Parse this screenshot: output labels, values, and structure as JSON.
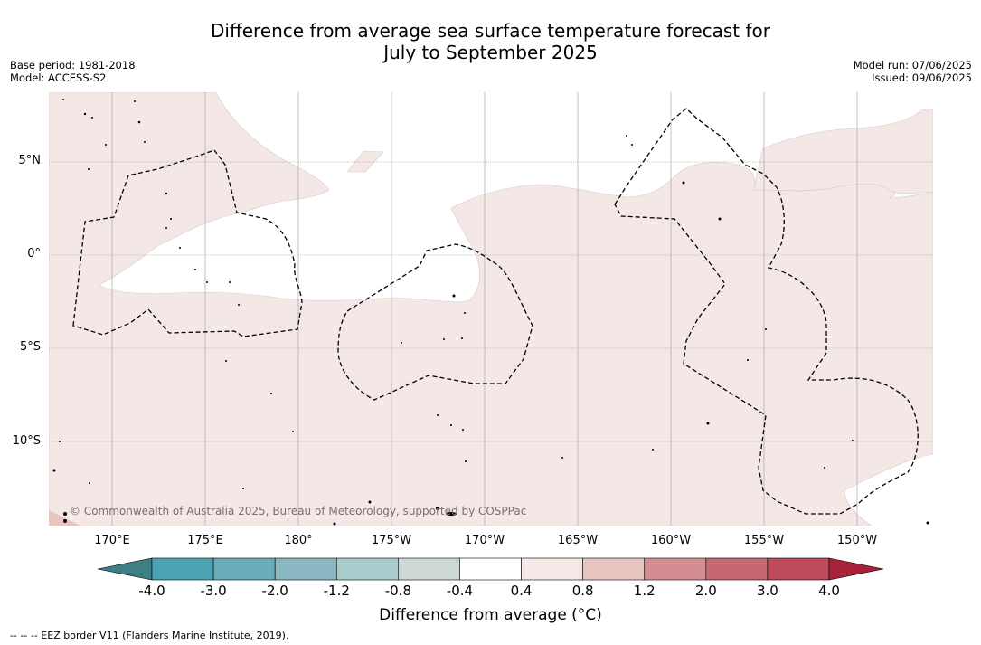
{
  "title_line1": "Difference from average sea surface temperature forecast for",
  "title_line2": "July to September 2025",
  "base_period": "Base period: 1981-2018",
  "model": "Model: ACCESS-S2",
  "model_run": "Model run: 07/06/2025",
  "issued": "Issued: 09/06/2025",
  "lat_labels": [
    "5°N",
    "0°",
    "5°S",
    "10°S"
  ],
  "lon_labels": [
    "170°E",
    "175°E",
    "180°",
    "175°W",
    "170°W",
    "165°W",
    "160°W",
    "155°W",
    "150°W"
  ],
  "copyright": "© Commonwealth of Australia 2025, Bureau of Meteorology, supported by COSPPac",
  "colorbar": {
    "ticks": [
      "-4.0",
      "-3.0",
      "-2.0",
      "-1.2",
      "-0.8",
      "-0.4",
      "0.4",
      "0.8",
      "1.2",
      "2.0",
      "3.0",
      "4.0"
    ],
    "colors": [
      "#3d7f85",
      "#4aa3b2",
      "#6aabba",
      "#8ab7c1",
      "#aacbcc",
      "#ccd7d6",
      "#ffffff",
      "#f5e8e6",
      "#e6c4bf",
      "#d48e92",
      "#c86772",
      "#bd4b59",
      "#a8213b"
    ],
    "label": "Difference from average (°C)"
  },
  "legend_note": "--  --  -- EEZ border V11 (Flanders Marine Institute, 2019).",
  "anomaly_colors": {
    "light_warm": "#f4e8e6",
    "neutral": "#ffffff",
    "moderate_warm": "#e8c6c0"
  }
}
